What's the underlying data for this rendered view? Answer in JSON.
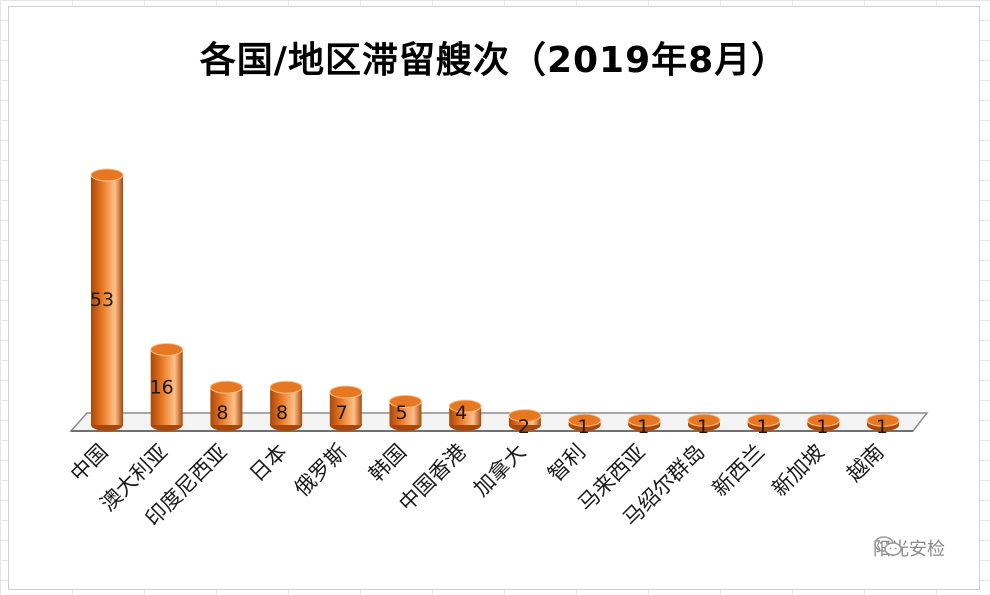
{
  "chart_data": {
    "type": "bar",
    "title": "各国/地区滞留艘次（2019年8月）",
    "categories": [
      "中国",
      "澳大利亚",
      "印度尼西亚",
      "日本",
      "俄罗斯",
      "韩国",
      "中国香港",
      "加拿大",
      "智利",
      "马来西亚",
      "马绍尔群岛",
      "新西兰",
      "新加坡",
      "越南"
    ],
    "values": [
      53,
      16,
      8,
      8,
      7,
      5,
      4,
      2,
      1,
      1,
      1,
      1,
      1,
      1
    ],
    "ylim": [
      0,
      53
    ],
    "grid": false,
    "legend": "none",
    "bar_color": "#e87722",
    "bar_color_dark": "#a8480c",
    "bar_color_light": "#ffc08a"
  },
  "watermark": {
    "text": "阳光安检",
    "icon": "wechat-icon"
  }
}
